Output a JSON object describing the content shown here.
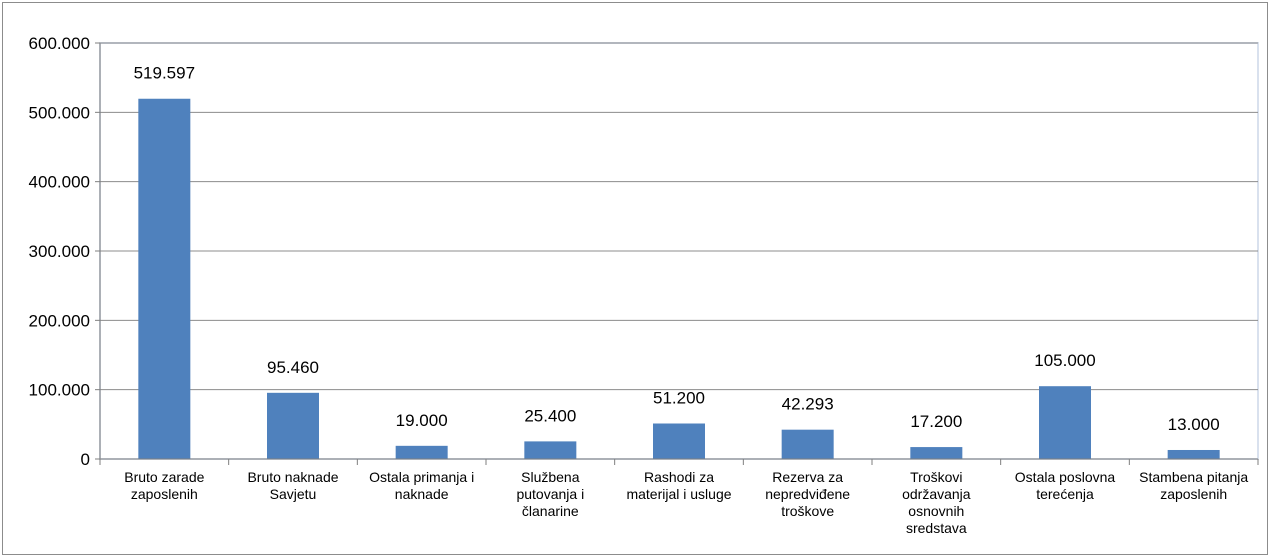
{
  "chart_data": {
    "type": "bar",
    "categories": [
      [
        "Bruto zarade",
        "zaposlenih"
      ],
      [
        "Bruto naknade",
        "Savjetu"
      ],
      [
        "Ostala primanja i",
        "naknade"
      ],
      [
        "Službena",
        "putovanja i",
        "članarine"
      ],
      [
        "Rashodi za",
        "materijal i usluge"
      ],
      [
        "Rezerva za",
        "nepredviđene",
        "troškove"
      ],
      [
        "Troškovi",
        "održavanja",
        "osnovnih",
        "sredstava"
      ],
      [
        "Ostala poslovna",
        "terećenja"
      ],
      [
        "Stambena pitanja",
        "zaposlenih"
      ]
    ],
    "values": [
      519597,
      95460,
      19000,
      25400,
      51200,
      42293,
      17200,
      105000,
      13000
    ],
    "data_labels": [
      "519.597",
      "95.460",
      "19.000",
      "25.400",
      "51.200",
      "42.293",
      "17.200",
      "105.000",
      "13.000"
    ],
    "y_ticks": [
      0,
      100000,
      200000,
      300000,
      400000,
      500000,
      600000
    ],
    "y_tick_labels": [
      "0",
      "100.000",
      "200.000",
      "300.000",
      "400.000",
      "500.000",
      "600.000"
    ],
    "ylim": [
      0,
      600000
    ],
    "grid": true,
    "legend": "none",
    "colors": {
      "bar": "#4f81bd",
      "grid": "#8c8c8c",
      "plot_background": "#ffffff",
      "plot_border": "#d9e1ee"
    }
  }
}
